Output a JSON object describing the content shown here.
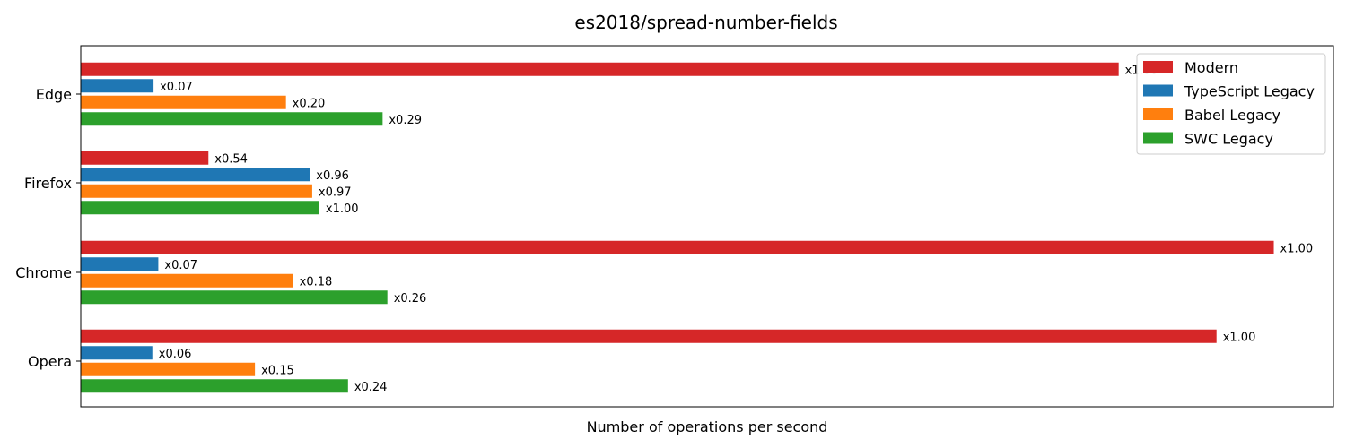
{
  "chart_data": {
    "type": "bar",
    "orientation": "horizontal",
    "title": "es2018/spread-number-fields",
    "xlabel": "Number of operations per second",
    "ylabel": "",
    "categories": [
      "Edge",
      "Firefox",
      "Chrome",
      "Opera"
    ],
    "series": [
      {
        "name": "Modern",
        "color": "#d62728",
        "values": [
          0.87,
          0.107,
          1.0,
          0.952
        ],
        "labels": [
          "x1.00",
          "x0.54",
          "x1.00",
          "x1.00"
        ]
      },
      {
        "name": "TypeScript Legacy",
        "color": "#1f77b4",
        "values": [
          0.061,
          0.192,
          0.065,
          0.06
        ],
        "labels": [
          "x0.07",
          "x0.96",
          "x0.07",
          "x0.06"
        ]
      },
      {
        "name": "Babel Legacy",
        "color": "#ff7f0e",
        "values": [
          0.172,
          0.194,
          0.178,
          0.146
        ],
        "labels": [
          "x0.20",
          "x0.97",
          "x0.18",
          "x0.15"
        ]
      },
      {
        "name": "SWC Legacy",
        "color": "#2ca02c",
        "values": [
          0.253,
          0.2,
          0.257,
          0.224
        ],
        "labels": [
          "x0.29",
          "x1.00",
          "x0.26",
          "x0.24"
        ]
      }
    ],
    "xlim": [
      0,
      1.05
    ],
    "x_ticks_shown": false,
    "grid": false,
    "legend_position": "upper-right"
  }
}
